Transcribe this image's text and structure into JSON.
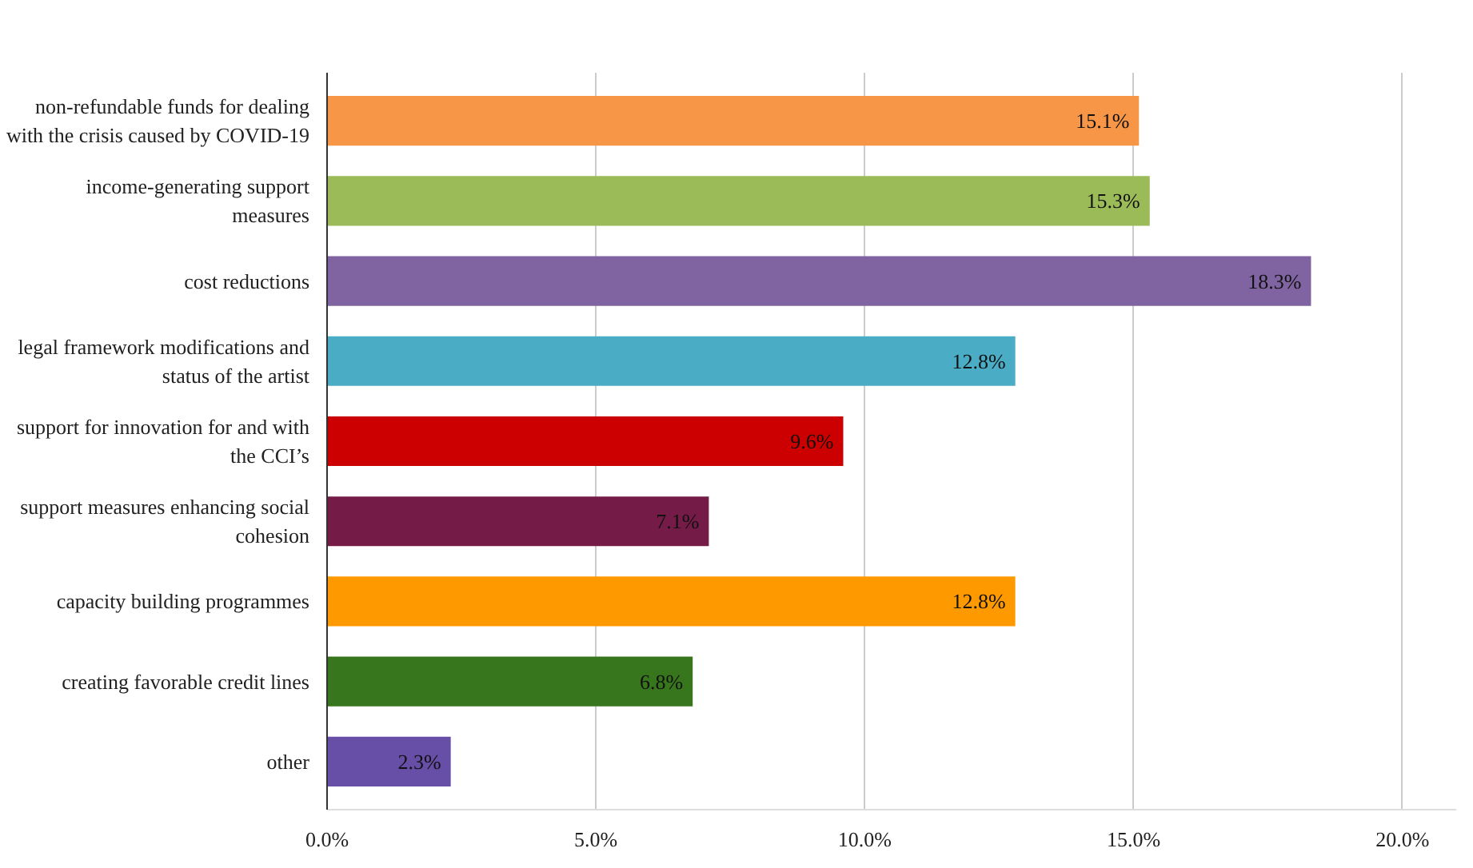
{
  "chart_data": {
    "type": "bar",
    "orientation": "horizontal",
    "categories": [
      "non-refundable funds for dealing\nwith the crisis caused by COVID-19",
      "income-generating support\nmeasures",
      "cost reductions",
      "legal framework modifications and\nstatus of the artist",
      "support for innovation for and with\nthe CCI’s",
      "support measures enhancing social\ncohesion",
      "capacity building programmes",
      "creating favorable credit lines",
      "other"
    ],
    "values": [
      15.1,
      15.3,
      18.3,
      12.8,
      9.6,
      7.1,
      12.8,
      6.8,
      2.3
    ],
    "colors": [
      "#f79646",
      "#9bbb59",
      "#8064a2",
      "#4bacc6",
      "#cc0000",
      "#741b47",
      "#ff9900",
      "#38761d",
      "#674ea7"
    ],
    "value_labels": [
      "15.1%",
      "15.3%",
      "18.3%",
      "12.8%",
      "9.6%",
      "7.1%",
      "12.8%",
      "6.8%",
      "2.3%"
    ],
    "xlim": [
      0,
      21
    ],
    "xticks": [
      {
        "value": 0,
        "label": "0.0%"
      },
      {
        "value": 5,
        "label": "5.0%"
      },
      {
        "value": 10,
        "label": "10.0%"
      },
      {
        "value": 15,
        "label": "15.0%"
      },
      {
        "value": 20,
        "label": "20.0%"
      }
    ],
    "grid": "x"
  }
}
